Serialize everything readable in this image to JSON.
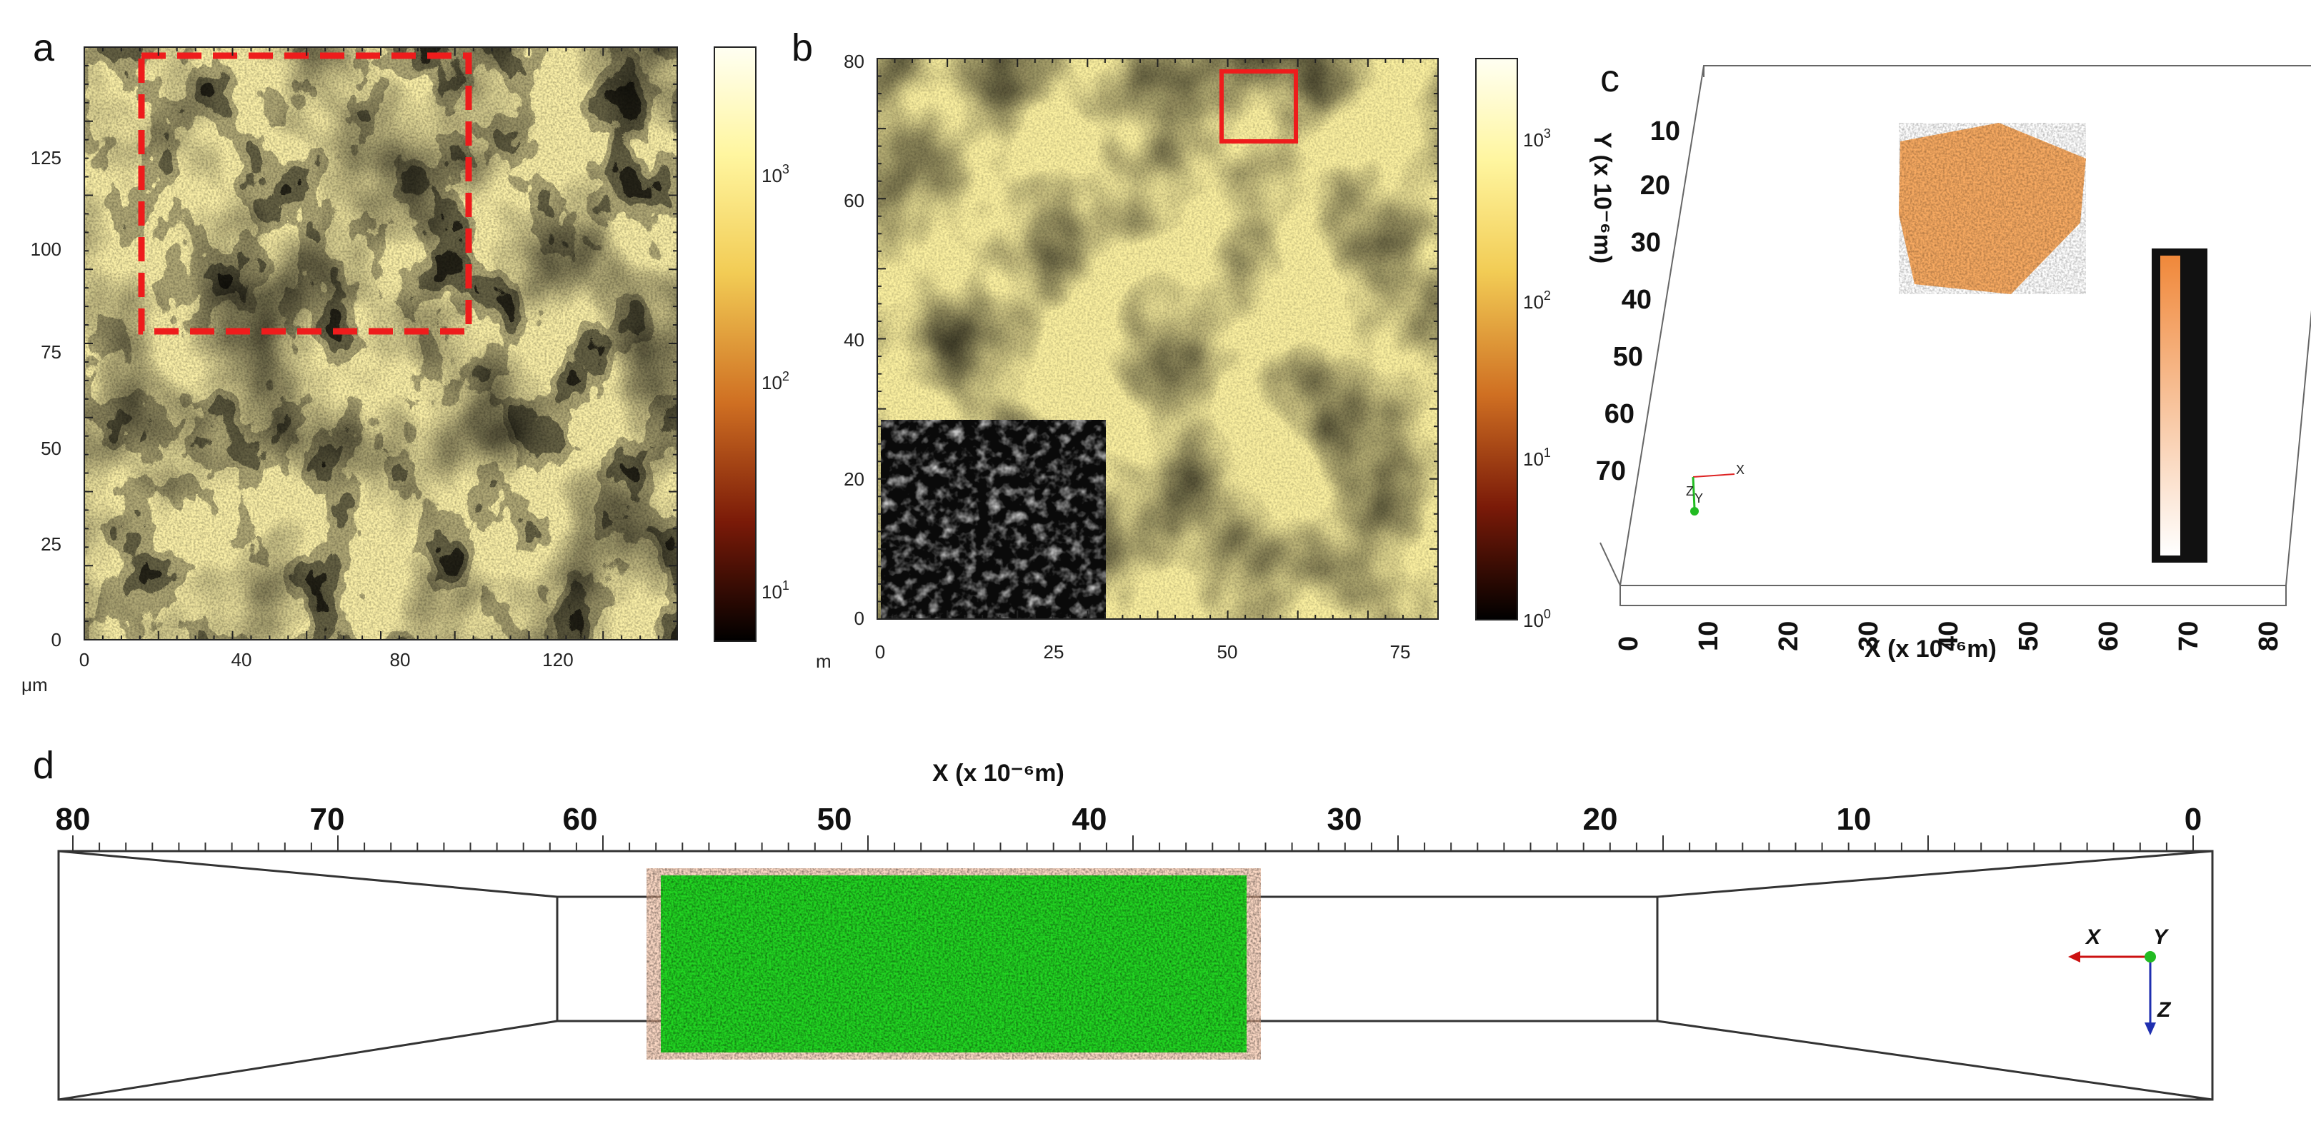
{
  "panels": {
    "a": {
      "label": "a",
      "unit": "μm",
      "x_ticks": [
        "0",
        "40",
        "80",
        "120"
      ],
      "y_ticks": [
        "0",
        "25",
        "50",
        "75",
        "100",
        "125"
      ],
      "colorbar_ticks": [
        "10",
        "10",
        "10"
      ],
      "colorbar_exponents": [
        "3",
        "2",
        "1"
      ],
      "colormap": [
        "#fffff2",
        "#fff8a0",
        "#f0c84a",
        "#c8641e",
        "#7a1a08",
        "#000000"
      ]
    },
    "b": {
      "label": "b",
      "unit": "m",
      "x_ticks": [
        "0",
        "25",
        "50",
        "75"
      ],
      "y_ticks": [
        "0",
        "20",
        "40",
        "60",
        "80"
      ],
      "colorbar_ticks": [
        "10",
        "10",
        "10",
        "10"
      ],
      "colorbar_exponents": [
        "3",
        "2",
        "1",
        "0"
      ]
    },
    "c": {
      "label": "c",
      "y_axis_title": "Y (x 10⁻⁶m)",
      "x_axis_title": "X (x 10⁻⁶m)",
      "y_ticks": [
        "10",
        "20",
        "30",
        "40",
        "50",
        "60",
        "70"
      ],
      "x_ticks": [
        "0",
        "10",
        "20",
        "30",
        "40",
        "50",
        "60",
        "70",
        "80"
      ],
      "volume_color": "#f5a050",
      "triad": [
        "X",
        "Z",
        "Y"
      ]
    },
    "d": {
      "label": "d",
      "x_axis_title": "X (x 10⁻⁶m)",
      "x_ticks": [
        "80",
        "70",
        "60",
        "50",
        "40",
        "30",
        "20",
        "10",
        "0"
      ],
      "triad": [
        "X",
        "Y",
        "Z"
      ],
      "colors": {
        "green": "#22d622",
        "orange": "#f8b894",
        "x_arrow": "#cc1111",
        "z_arrow": "#1f2fb0"
      }
    }
  }
}
